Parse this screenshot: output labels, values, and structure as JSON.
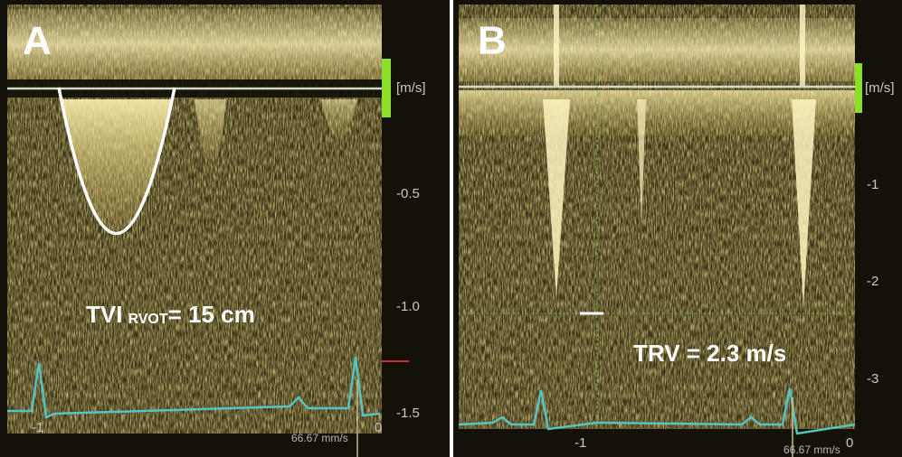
{
  "panels": [
    {
      "letter": "A",
      "unit": "[m/s]",
      "velocity_ticks": [
        "-0.5",
        "-1.0",
        "-1.5"
      ],
      "time_ticks": [
        "-1",
        "0"
      ],
      "sweep": "66.67 mm/s",
      "annotation": {
        "main": "TVI",
        "subscript": "RVOT",
        "rest": "= 15 cm"
      }
    },
    {
      "letter": "B",
      "unit": "[m/s]",
      "velocity_ticks": [
        "-1",
        "-2",
        "-3"
      ],
      "time_ticks": [
        "-1",
        "0"
      ],
      "sweep": "66.67 mm/s",
      "annotation": {
        "main": "TRV = 2.3 m/s"
      }
    }
  ]
}
